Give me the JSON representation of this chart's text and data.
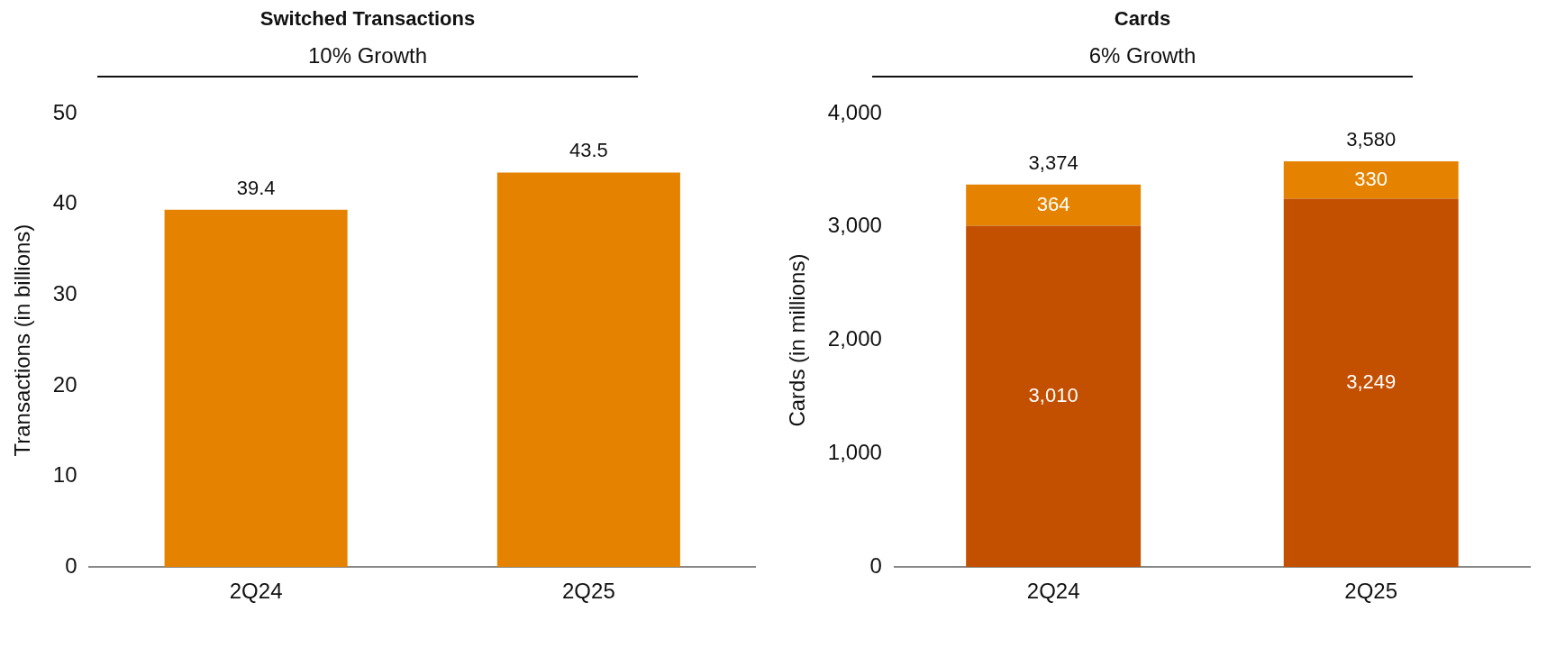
{
  "chart_data": [
    {
      "type": "bar",
      "title": "Switched Transactions",
      "subtitle": "10% Growth",
      "ylabel": "Transactions (in billions)",
      "categories": [
        "2Q24",
        "2Q25"
      ],
      "values": [
        39.4,
        43.5
      ],
      "color": "#e58300",
      "ylim": [
        0,
        50
      ],
      "yticks": [
        0,
        10,
        20,
        30,
        40,
        50
      ],
      "data_labels": true,
      "grid": false,
      "legend": false
    },
    {
      "type": "bar",
      "title": "Cards",
      "subtitle": "6% Growth",
      "ylabel": "Cards (in millions)",
      "categories": [
        "2Q24",
        "2Q25"
      ],
      "stacked": true,
      "series": [
        {
          "color": "#c34f00",
          "values": [
            3010,
            3249
          ],
          "value_labels": [
            "3,010",
            "3,249"
          ]
        },
        {
          "color": "#e58300",
          "values": [
            364,
            330
          ],
          "value_labels": [
            "364",
            "330"
          ]
        }
      ],
      "totals": [
        "3,374",
        "3,580"
      ],
      "ylim": [
        0,
        4000
      ],
      "yticks": [
        0,
        {
          "value": 1000,
          "label": "1,000"
        },
        {
          "value": 2000,
          "label": "2,000"
        },
        {
          "value": 3000,
          "label": "3,000"
        },
        {
          "value": 4000,
          "label": "4,000"
        }
      ],
      "grid": false,
      "legend": false
    }
  ]
}
